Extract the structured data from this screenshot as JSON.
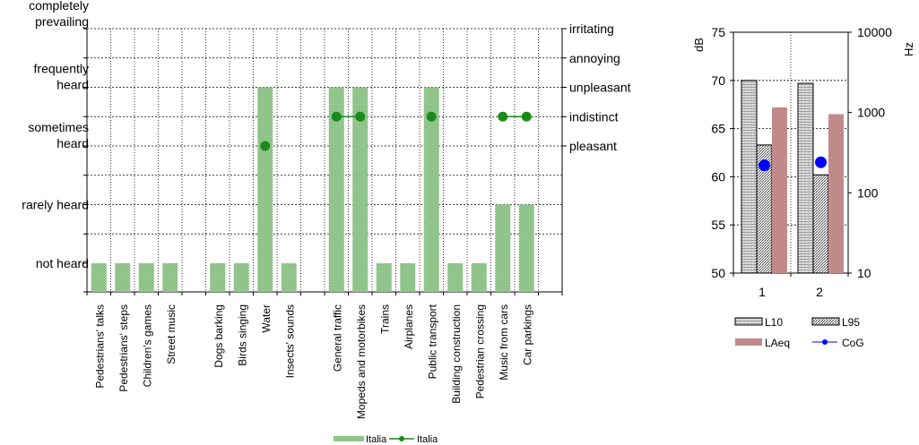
{
  "colors": {
    "bar_green": "#8fc78a",
    "dot_green": "#1a8a1a",
    "grid": "#000000",
    "laeq_fill": "#c08a8a",
    "cog_blue": "#0000ff"
  },
  "chart_data": [
    {
      "type": "bar",
      "title": "",
      "categories": [
        "Pedestrians' talks",
        "Pedestrians' steps",
        "Children's games",
        "Street music",
        "",
        "Dogs barking",
        "Birds singing",
        "Water",
        "Insects' sounds",
        "",
        "General traffic",
        "Mopeds and motorbikes",
        "Trains",
        "Airplanes",
        "Public transport",
        "Building construction",
        "Pedestrian crossing",
        "Music from cars",
        "Car parkings"
      ],
      "y_left_ticks": [
        {
          "value": 0,
          "label": "not heard"
        },
        {
          "value": 1,
          "label": ""
        },
        {
          "value": 2,
          "label": "rarely heard"
        },
        {
          "value": 3,
          "label": ""
        },
        {
          "value": 4,
          "label": "sometimes heard"
        },
        {
          "value": 5,
          "label": ""
        },
        {
          "value": 6,
          "label": "frequently heard"
        },
        {
          "value": 7,
          "label": ""
        },
        {
          "value": 8,
          "label": "completely prevailing"
        }
      ],
      "y_right_ticks": [
        {
          "value": 4,
          "label": "pleasant"
        },
        {
          "value": 5,
          "label": "indistinct"
        },
        {
          "value": 6,
          "label": "unpleasant"
        },
        {
          "value": 7,
          "label": "annoying"
        },
        {
          "value": 8,
          "label": "irritating"
        }
      ],
      "ylim": [
        0,
        8
      ],
      "series": [
        {
          "name": "Italia",
          "kind": "bar",
          "values": [
            0,
            0,
            0,
            0,
            null,
            0,
            0,
            6,
            0,
            null,
            6,
            6,
            0,
            0,
            6,
            0,
            0,
            2,
            2
          ]
        },
        {
          "name": "Italia",
          "kind": "line-marker",
          "values": [
            null,
            null,
            null,
            null,
            null,
            null,
            null,
            4,
            null,
            null,
            5,
            5,
            null,
            null,
            5,
            null,
            null,
            5,
            5
          ]
        }
      ],
      "legend": {
        "position": "bottom",
        "entries": [
          "Italia",
          "Italia"
        ]
      },
      "grid": true
    },
    {
      "type": "bar",
      "title": "",
      "categories": [
        "1",
        "2"
      ],
      "y_left": {
        "label": "dB",
        "ylim": [
          50,
          75
        ],
        "ticks": [
          50,
          55,
          60,
          65,
          70,
          75
        ]
      },
      "y_right": {
        "label": "Hz",
        "scale": "log",
        "ylim": [
          10,
          10000
        ],
        "ticks": [
          "10",
          "100",
          "1000",
          "10000"
        ]
      },
      "series": [
        {
          "name": "L10",
          "axis": "left",
          "values": [
            70,
            69.7
          ]
        },
        {
          "name": "L95",
          "axis": "left",
          "values": [
            63.3,
            60.2
          ]
        },
        {
          "name": "LAeq",
          "axis": "left",
          "values": [
            67.2,
            66.5
          ]
        },
        {
          "name": "CoG",
          "axis": "right",
          "kind": "marker",
          "values": [
            220,
            240
          ]
        }
      ],
      "legend": {
        "position": "bottom",
        "entries": [
          "L10",
          "L95",
          "LAeq",
          "CoG"
        ]
      },
      "grid": true
    }
  ]
}
